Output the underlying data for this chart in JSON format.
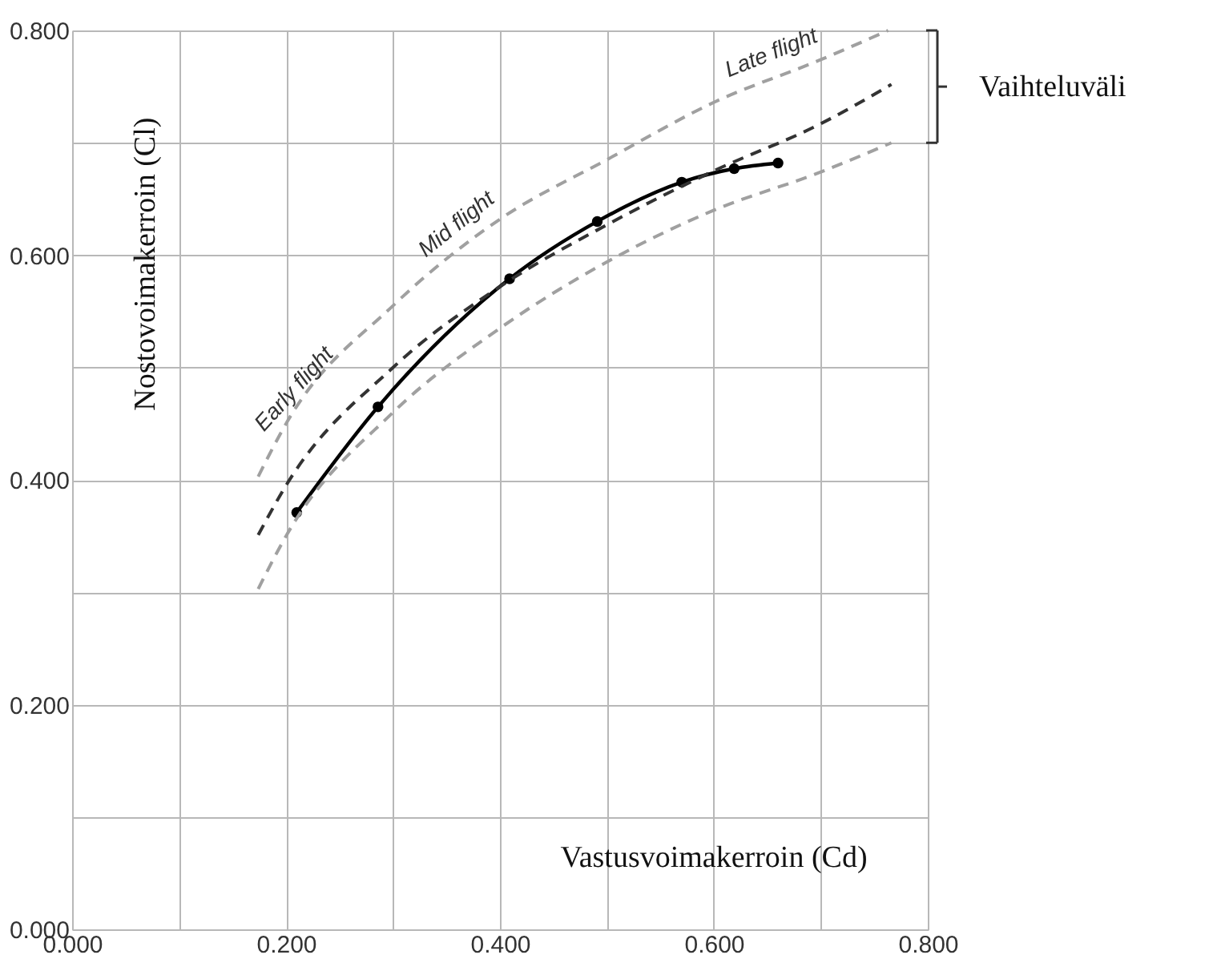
{
  "chart_data": {
    "type": "line",
    "xlabel": "Vastusvoimakerroin (Cd)",
    "ylabel": "Nostovoimakerroin (Cl)",
    "series": [
      {
        "color": "#000000",
        "line_style": "solid",
        "marker": "circle",
        "x": [
          0.21,
          0.286,
          0.409,
          0.491,
          0.57,
          0.619,
          0.66
        ],
        "values": [
          0.371,
          0.465,
          0.579,
          0.63,
          0.665,
          0.677,
          0.682
        ]
      },
      {
        "color": "#333333",
        "line_style": "dashed",
        "marker": "none",
        "x": [
          0.174,
          0.2,
          0.3,
          0.4,
          0.5,
          0.6,
          0.7,
          0.766
        ],
        "values": [
          0.351,
          0.395,
          0.5,
          0.572,
          0.627,
          0.675,
          0.717,
          0.752
        ]
      },
      {
        "color": "#a0a0a0",
        "line_style": "dashed",
        "marker": "none",
        "x": [
          0.174,
          0.2,
          0.3,
          0.4,
          0.5,
          0.6,
          0.7,
          0.763
        ],
        "values": [
          0.403,
          0.45,
          0.555,
          0.632,
          0.685,
          0.736,
          0.774,
          0.8
        ]
      },
      {
        "color": "#a0a0a0",
        "line_style": "dashed",
        "marker": "none",
        "x": [
          0.174,
          0.2,
          0.3,
          0.4,
          0.5,
          0.6,
          0.7,
          0.766
        ],
        "values": [
          0.303,
          0.35,
          0.46,
          0.535,
          0.594,
          0.64,
          0.674,
          0.7
        ]
      }
    ],
    "annotations": [
      {
        "text": "Early flight",
        "x": 0.22,
        "y": 0.47
      },
      {
        "text": "Mid flight",
        "x": 0.37,
        "y": 0.615
      },
      {
        "text": "Late flight",
        "x": 0.66,
        "y": 0.765
      },
      "Vaihteluväli"
    ],
    "xlim": [
      0,
      0.8
    ],
    "ylim": [
      0,
      0.8
    ],
    "xticks": [
      {
        "value": 0,
        "label": "0.000"
      },
      {
        "value": 0.1,
        "label": null
      },
      {
        "value": 0.2,
        "label": "0.200"
      },
      {
        "value": 0.3,
        "label": null
      },
      {
        "value": 0.4,
        "label": "0.400"
      },
      {
        "value": 0.5,
        "label": null
      },
      {
        "value": 0.6,
        "label": "0.600"
      },
      {
        "value": 0.7,
        "label": null
      },
      {
        "value": 0.8,
        "label": "0.800"
      }
    ],
    "yticks": [
      {
        "value": 0,
        "label": "0.000"
      },
      {
        "value": 0.1,
        "label": null
      },
      {
        "value": 0.2,
        "label": "0.200"
      },
      {
        "value": 0.3,
        "label": null
      },
      {
        "value": 0.4,
        "label": "0.400"
      },
      {
        "value": 0.5,
        "label": null
      },
      {
        "value": 0.6,
        "label": "0.600"
      },
      {
        "value": 0.7,
        "label": null
      },
      {
        "value": 0.8,
        "label": "0.800"
      }
    ],
    "grid": true
  }
}
